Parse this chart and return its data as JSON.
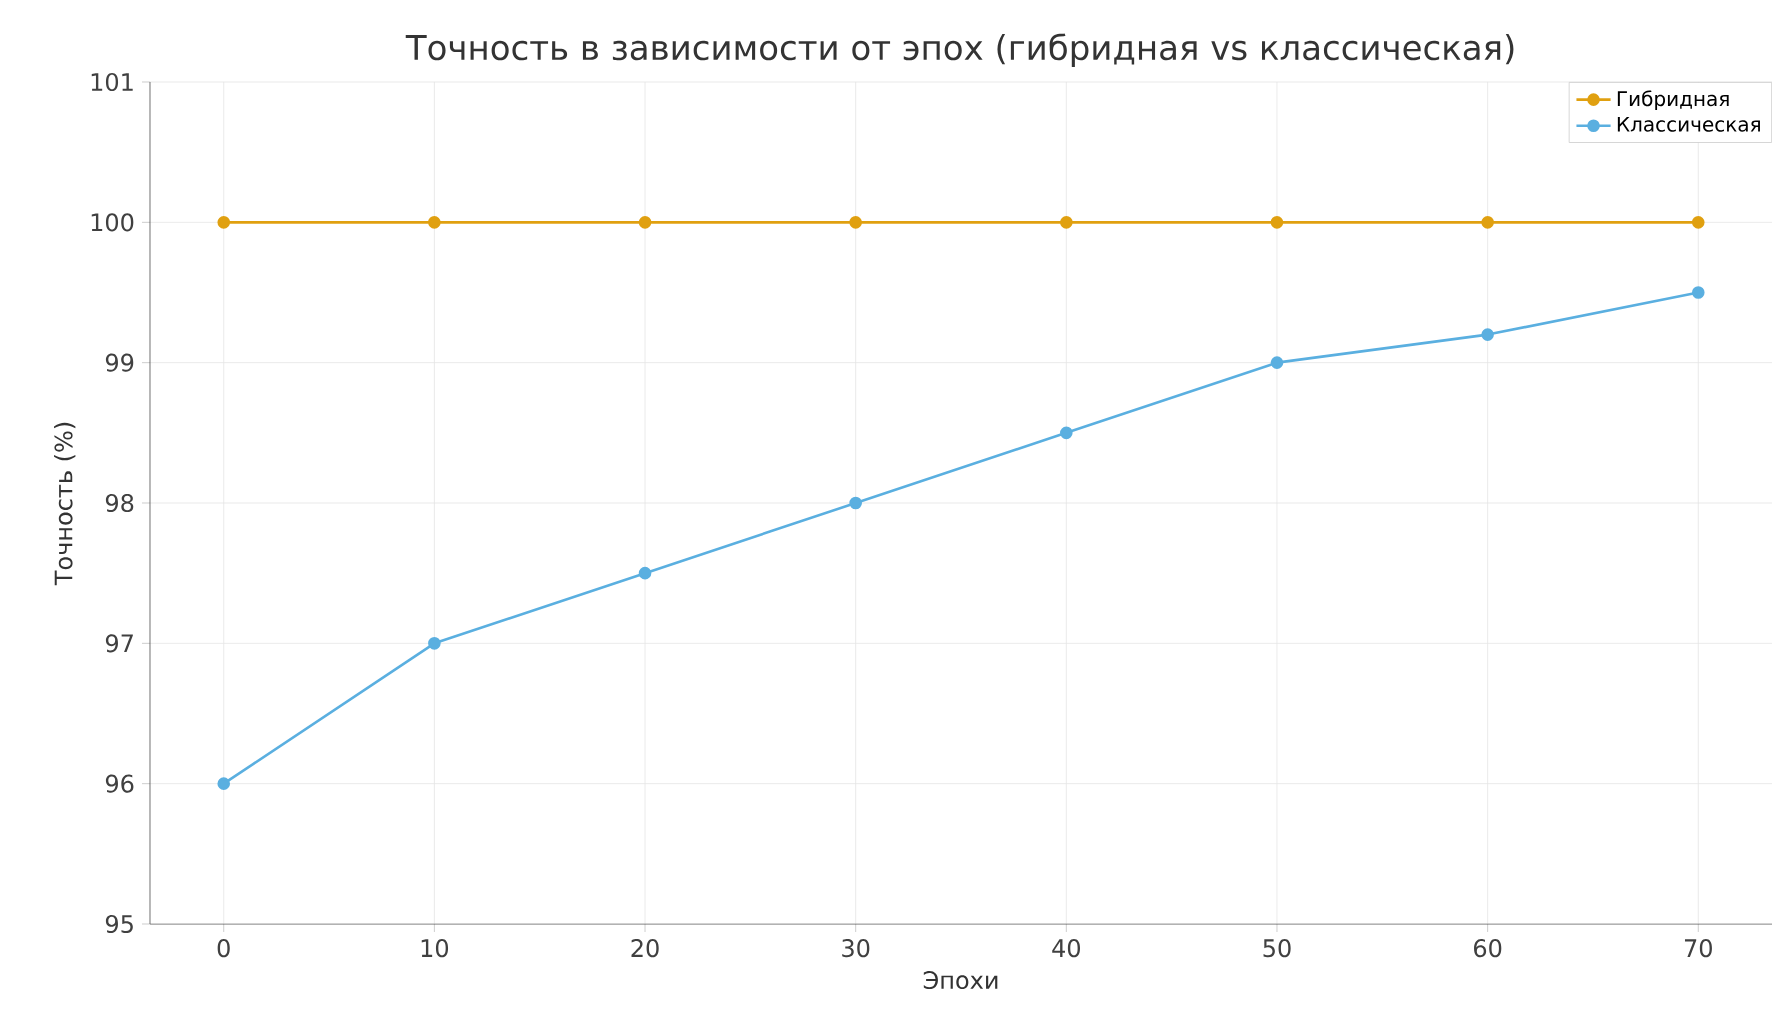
{
  "chart_data": {
    "type": "line",
    "title": "Точность в зависимости от эпох (гибридная vs классическая)",
    "xlabel": "Эпохи",
    "ylabel": "Точность (%)",
    "x": [
      0,
      10,
      20,
      30,
      40,
      50,
      60,
      70
    ],
    "series": [
      {
        "name": "Гибридная",
        "color": "#e0a010",
        "values": [
          100,
          100,
          100,
          100,
          100,
          100,
          100,
          100
        ]
      },
      {
        "name": "Классическая",
        "color": "#5aafe0",
        "values": [
          96,
          97,
          97.5,
          98,
          98.5,
          99,
          99.2,
          99.5
        ]
      }
    ],
    "xlim": [
      -3.5,
      73.5
    ],
    "ylim": [
      95,
      101
    ],
    "xticks": [
      0,
      10,
      20,
      30,
      40,
      50,
      60,
      70
    ],
    "yticks": [
      95,
      96,
      97,
      98,
      99,
      100,
      101
    ],
    "grid": true,
    "legend": "top right",
    "marker": "circle",
    "line_style": "solid"
  }
}
